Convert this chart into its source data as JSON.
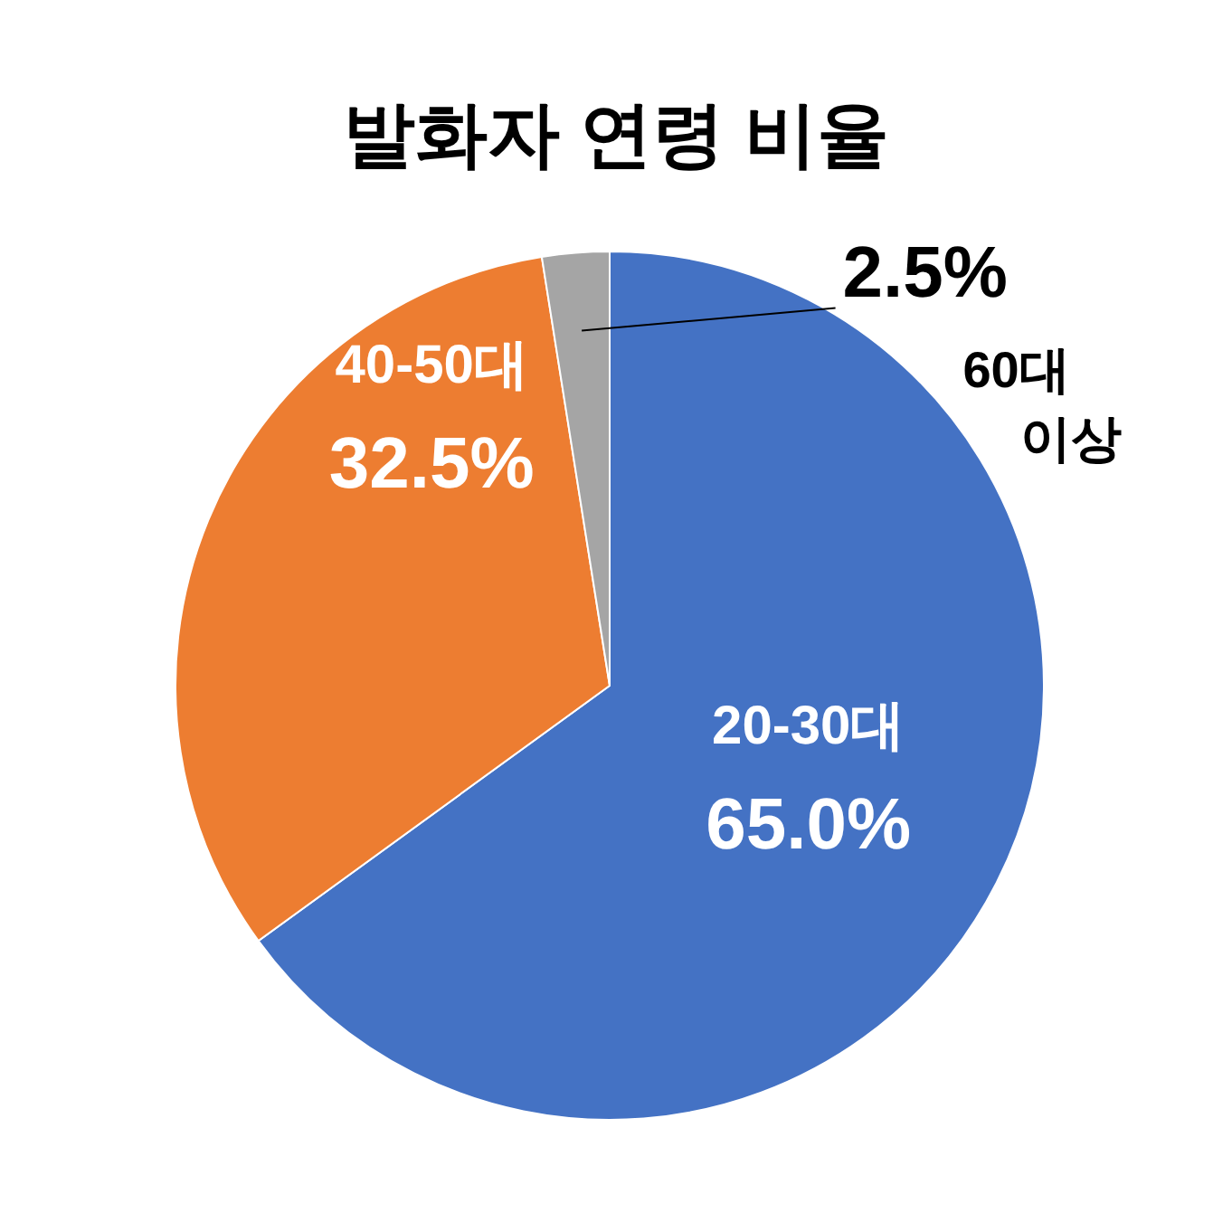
{
  "chart_data": {
    "type": "pie",
    "title": "발화자 연령 비율",
    "categories": [
      "20-30대",
      "40-50대",
      "60대 이상"
    ],
    "values": [
      65.0,
      32.5,
      2.5
    ],
    "value_labels": [
      "65.0%",
      "32.5%",
      "2.5%"
    ],
    "colors": [
      "#4472c4",
      "#ed7d31",
      "#a5a5a5"
    ]
  }
}
